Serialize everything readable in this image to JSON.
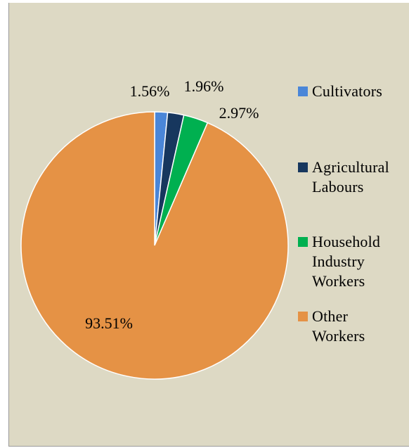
{
  "chart_data": {
    "type": "pie",
    "categories": [
      "Cultivators",
      "Agricultural Labours",
      "Household Industry Workers",
      "Other Workers"
    ],
    "values": [
      1.56,
      1.96,
      2.97,
      93.51
    ],
    "data_labels": [
      "1.56%",
      "1.96%",
      "2.97%",
      "93.51%"
    ],
    "colors": [
      "#4A86D8",
      "#17375E",
      "#00B050",
      "#E59245"
    ],
    "legend_labels": [
      [
        "Cultivators"
      ],
      [
        "Agricultural",
        "Labours"
      ],
      [
        "Household",
        "Industry",
        "Workers"
      ],
      [
        "Other",
        "Workers"
      ]
    ],
    "legend_position": "right",
    "start_angle": "12 o'clock",
    "direction": "clockwise"
  }
}
